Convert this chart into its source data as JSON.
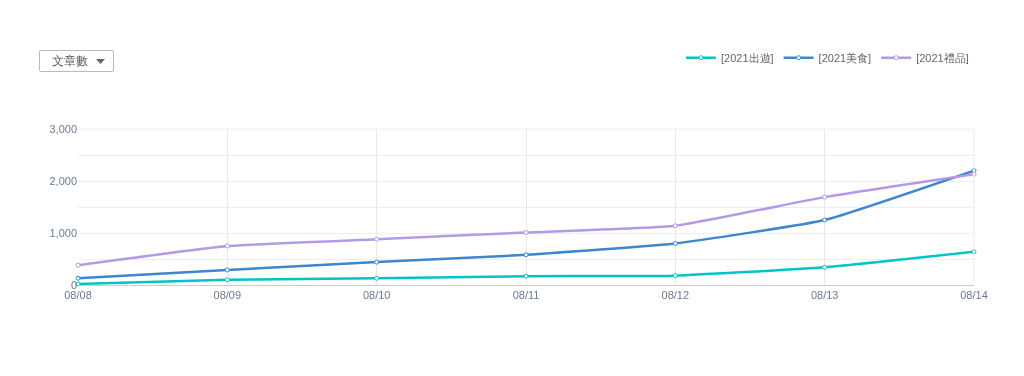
{
  "chart_data": {
    "type": "line",
    "annotations": [
      "文章數"
    ],
    "categories": [
      "08/08",
      "08/09",
      "08/10",
      "08/11",
      "08/12",
      "08/13",
      "08/14"
    ],
    "series": [
      {
        "name": "[2021出遊]",
        "color": "#00c5c8",
        "values": [
          20,
          100,
          130,
          170,
          180,
          340,
          640
        ]
      },
      {
        "name": "[2021美食]",
        "color": "#3d87cc",
        "values": [
          130,
          290,
          440,
          580,
          800,
          1250,
          2200
        ]
      },
      {
        "name": "[2021禮品]",
        "color": "#b399e6",
        "values": [
          380,
          750,
          880,
          1010,
          1140,
          1690,
          2130
        ]
      }
    ],
    "ylim": [
      0,
      3000
    ],
    "yticks": [
      0,
      {
        "value": 500,
        "label": null
      },
      {
        "value": 1000,
        "label": "1,000"
      },
      {
        "value": 1500,
        "label": null
      },
      {
        "value": 2000,
        "label": "2,000"
      },
      {
        "value": 2500,
        "label": null
      },
      {
        "value": 3000,
        "label": "3,000"
      }
    ],
    "grid": true,
    "legend": "top right",
    "marker": "circle",
    "line_style": "solid"
  }
}
